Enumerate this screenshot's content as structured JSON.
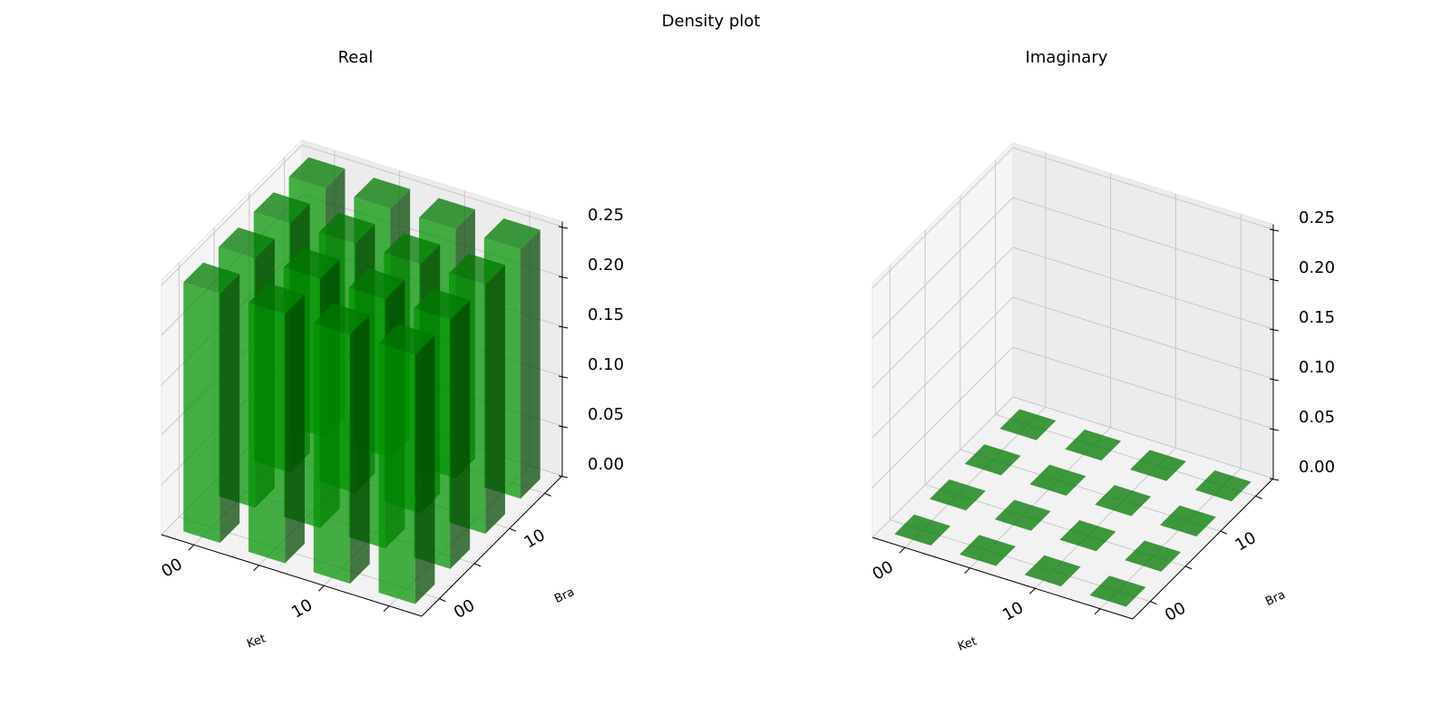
{
  "title": "Density plot",
  "chart_data": [
    {
      "type": "bar3d",
      "title": "Real",
      "x_label": "Ket",
      "y_label": "Bra",
      "x_categories": [
        "00",
        null,
        "10",
        null
      ],
      "y_categories": [
        "00",
        null,
        "10",
        null
      ],
      "values": [
        [
          0.25,
          0.25,
          0.25,
          0.25
        ],
        [
          0.25,
          0.25,
          0.25,
          0.25
        ],
        [
          0.25,
          0.25,
          0.25,
          0.25
        ],
        [
          0.25,
          0.25,
          0.25,
          0.25
        ]
      ],
      "color": "#008000",
      "zlim": [
        0,
        0.25
      ],
      "zticks": [
        {
          "value": 0,
          "label": "0.00"
        },
        0.05,
        {
          "value": 0.1,
          "label": "0.10"
        },
        0.15,
        {
          "value": 0.2,
          "label": "0.20"
        },
        0.25
      ],
      "grid": true
    },
    {
      "type": "bar3d",
      "title": "Imaginary",
      "x_label": "Ket",
      "y_label": "Bra",
      "x_categories": [
        "00",
        null,
        "10",
        null
      ],
      "y_categories": [
        "00",
        null,
        "10",
        null
      ],
      "values": [
        [
          0,
          0,
          0,
          0
        ],
        [
          0,
          0,
          0,
          0
        ],
        [
          0,
          0,
          0,
          0
        ],
        [
          0,
          0,
          0,
          0
        ]
      ],
      "color": "#008000",
      "zlim": [
        0,
        0.25
      ],
      "zticks": [
        {
          "value": 0,
          "label": "0.00"
        },
        0.05,
        {
          "value": 0.1,
          "label": "0.10"
        },
        0.15,
        {
          "value": 0.2,
          "label": "0.20"
        },
        0.25
      ],
      "grid": true
    }
  ]
}
